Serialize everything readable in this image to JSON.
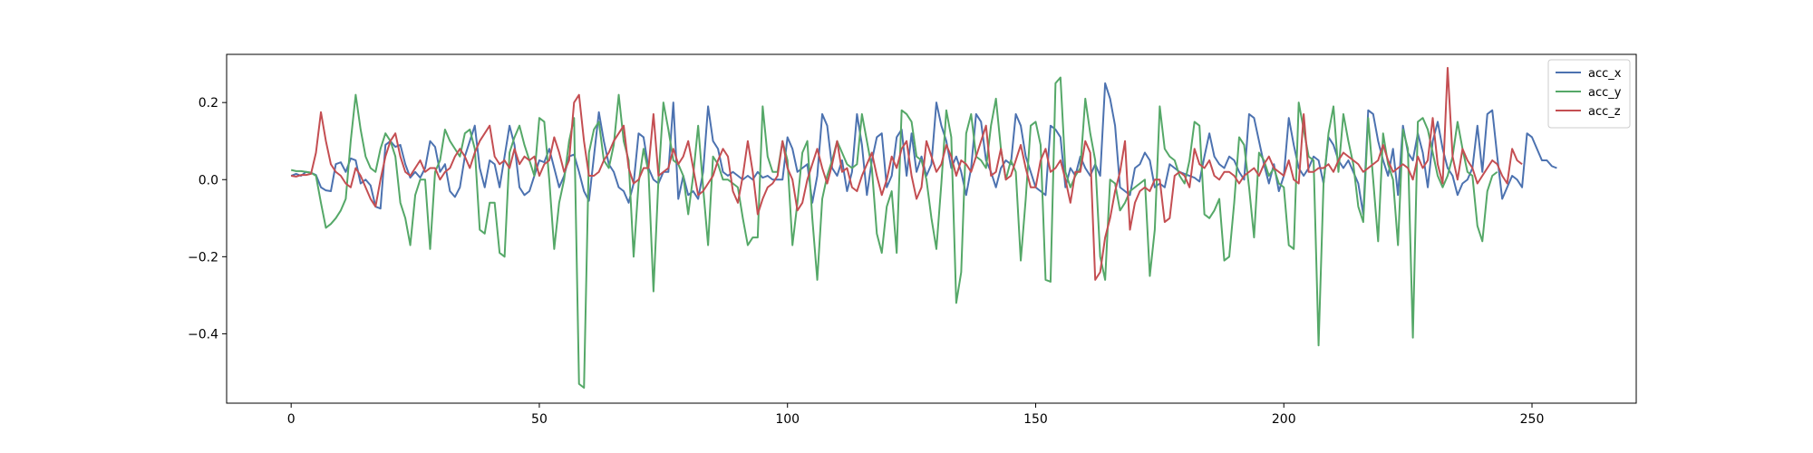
{
  "chart_data": {
    "type": "line",
    "title": "",
    "xlabel": "",
    "ylabel": "",
    "xlim": [
      -13,
      271
    ],
    "ylim": [
      -0.58,
      0.325
    ],
    "xticks": [
      0,
      50,
      100,
      150,
      200,
      250
    ],
    "xtick_labels": [
      "0",
      "50",
      "100",
      "150",
      "200",
      "250"
    ],
    "yticks": [
      0.2,
      0.0,
      -0.2,
      -0.4
    ],
    "ytick_labels": [
      "0.2",
      "0.0",
      "−0.2",
      "−0.4"
    ],
    "grid": false,
    "legend_position": "top-right",
    "x_start": 0,
    "x_step": 1,
    "series": [
      {
        "name": "acc_x",
        "color": "#4c72b0",
        "values": [
          0.01,
          0.015,
          0.01,
          0.02,
          0.018,
          0.012,
          -0.02,
          -0.028,
          -0.03,
          0.04,
          0.045,
          0.02,
          0.055,
          0.05,
          -0.01,
          0.0,
          -0.015,
          -0.07,
          -0.075,
          0.09,
          0.1,
          0.085,
          0.09,
          0.04,
          0.005,
          0.02,
          0.005,
          0.03,
          0.1,
          0.085,
          0.02,
          0.04,
          -0.03,
          -0.045,
          -0.02,
          0.06,
          0.1,
          0.14,
          0.03,
          -0.02,
          0.05,
          0.04,
          -0.02,
          0.06,
          0.14,
          0.09,
          -0.02,
          -0.04,
          -0.03,
          0.01,
          0.05,
          0.045,
          0.08,
          0.03,
          -0.02,
          0.01,
          0.06,
          0.065,
          0.02,
          -0.03,
          -0.055,
          0.06,
          0.175,
          0.1,
          0.04,
          0.02,
          -0.02,
          -0.03,
          -0.06,
          -0.01,
          0.12,
          0.11,
          0.03,
          0.0,
          -0.01,
          0.02,
          0.02,
          0.2,
          -0.05,
          0.01,
          -0.04,
          -0.03,
          -0.05,
          0.02,
          0.19,
          0.1,
          0.08,
          0.02,
          0.01,
          0.02,
          0.01,
          0.0,
          0.01,
          0.0,
          0.02,
          0.005,
          0.01,
          0.0,
          0.0,
          0.0,
          0.11,
          0.08,
          0.02,
          0.03,
          0.04,
          -0.06,
          0.01,
          0.17,
          0.14,
          0.03,
          0.01,
          0.05,
          -0.03,
          0.02,
          0.17,
          0.09,
          -0.04,
          0.05,
          0.11,
          0.12,
          -0.02,
          0.01,
          0.11,
          0.13,
          0.01,
          0.12,
          0.02,
          0.06,
          0.01,
          0.04,
          0.2,
          0.14,
          0.1,
          0.03,
          0.06,
          0.02,
          -0.04,
          0.03,
          0.17,
          0.15,
          0.05,
          0.02,
          -0.02,
          0.03,
          0.05,
          0.04,
          0.17,
          0.14,
          0.06,
          0.02,
          -0.02,
          -0.03,
          -0.04,
          0.14,
          0.13,
          0.11,
          -0.02,
          0.03,
          0.01,
          0.06,
          0.03,
          0.01,
          0.04,
          0.01,
          0.25,
          0.21,
          0.14,
          -0.02,
          -0.03,
          -0.04,
          0.03,
          0.04,
          0.07,
          0.05,
          -0.02,
          -0.01,
          -0.02,
          0.04,
          0.03,
          0.02,
          0.015,
          0.01,
          0.005,
          -0.005,
          0.06,
          0.12,
          0.06,
          0.04,
          0.03,
          0.06,
          0.05,
          0.02,
          0.0,
          0.17,
          0.16,
          0.1,
          0.04,
          -0.01,
          0.04,
          -0.03,
          0.01,
          0.16,
          0.09,
          0.03,
          0.01,
          0.03,
          0.06,
          0.05,
          -0.01,
          0.11,
          0.09,
          0.05,
          0.03,
          0.05,
          0.02,
          -0.01,
          -0.09,
          0.18,
          0.17,
          0.1,
          0.05,
          0.01,
          0.08,
          -0.04,
          0.14,
          0.07,
          0.05,
          0.12,
          0.07,
          -0.02,
          0.1,
          0.15,
          0.08,
          0.03,
          0.01,
          -0.04,
          -0.01,
          0.0,
          0.03,
          0.14,
          0.02,
          0.17,
          0.18,
          0.06,
          -0.05,
          -0.02,
          0.01,
          0.0,
          -0.02,
          0.12,
          0.11,
          0.08,
          0.05,
          0.05,
          0.035,
          0.03
        ]
      },
      {
        "name": "acc_y",
        "color": "#55a868",
        "values": [
          0.025,
          0.022,
          0.022,
          0.02,
          0.018,
          0.01,
          -0.06,
          -0.125,
          -0.115,
          -0.1,
          -0.08,
          -0.05,
          0.1,
          0.22,
          0.13,
          0.06,
          0.03,
          0.02,
          0.08,
          0.12,
          0.1,
          0.06,
          -0.06,
          -0.1,
          -0.17,
          -0.04,
          0.0,
          0.0,
          -0.18,
          0.02,
          0.05,
          0.13,
          0.1,
          0.08,
          0.06,
          0.12,
          0.13,
          0.08,
          -0.13,
          -0.14,
          -0.06,
          -0.06,
          -0.19,
          -0.2,
          0.07,
          0.11,
          0.14,
          0.09,
          0.05,
          0.01,
          0.16,
          0.15,
          0.0,
          -0.18,
          -0.06,
          0.0,
          0.1,
          0.16,
          -0.53,
          -0.54,
          0.07,
          0.13,
          0.15,
          0.05,
          0.03,
          0.09,
          0.22,
          0.1,
          0.05,
          -0.2,
          -0.01,
          0.08,
          0.02,
          -0.29,
          0.0,
          0.2,
          0.13,
          0.05,
          0.04,
          0.01,
          -0.09,
          0.01,
          0.14,
          -0.02,
          -0.17,
          0.06,
          0.04,
          0.0,
          0.0,
          -0.01,
          -0.02,
          -0.1,
          -0.17,
          -0.15,
          -0.15,
          0.19,
          0.06,
          0.02,
          0.02,
          0.1,
          0.05,
          -0.17,
          -0.06,
          0.07,
          0.1,
          -0.1,
          -0.26,
          -0.05,
          0.01,
          0.05,
          0.1,
          0.07,
          0.04,
          0.03,
          0.04,
          0.17,
          0.1,
          0.03,
          -0.14,
          -0.19,
          -0.07,
          -0.03,
          -0.19,
          0.18,
          0.17,
          0.15,
          0.06,
          0.05,
          0.0,
          -0.1,
          -0.18,
          -0.01,
          0.18,
          0.11,
          -0.32,
          -0.24,
          0.12,
          0.17,
          0.06,
          0.05,
          0.03,
          0.14,
          0.21,
          0.08,
          0.0,
          0.05,
          0.02,
          -0.21,
          -0.05,
          0.14,
          0.15,
          0.09,
          -0.26,
          -0.265,
          0.25,
          0.265,
          0.02,
          -0.02,
          0.01,
          0.03,
          0.21,
          0.12,
          0.05,
          -0.2,
          -0.26,
          0.0,
          -0.01,
          -0.08,
          -0.06,
          -0.03,
          -0.02,
          -0.01,
          0.0,
          -0.25,
          -0.13,
          0.19,
          0.08,
          0.06,
          0.05,
          0.01,
          -0.01,
          0.05,
          0.15,
          0.14,
          -0.09,
          -0.1,
          -0.08,
          -0.05,
          -0.21,
          -0.2,
          -0.06,
          0.11,
          0.09,
          -0.02,
          -0.15,
          0.07,
          0.05,
          0.01,
          0.03,
          -0.01,
          -0.02,
          -0.17,
          -0.18,
          0.2,
          0.13,
          0.06,
          0.05,
          -0.43,
          -0.01,
          0.12,
          0.19,
          0.02,
          0.17,
          0.1,
          0.04,
          -0.07,
          -0.11,
          0.16,
          0.0,
          -0.16,
          0.12,
          0.04,
          0.0,
          -0.17,
          0.13,
          0.08,
          -0.41,
          0.15,
          0.16,
          0.13,
          0.07,
          0.01,
          -0.02,
          0.01,
          0.06,
          0.15,
          0.08,
          0.02,
          0.01,
          -0.12,
          -0.16,
          -0.03,
          0.01,
          0.02
        ]
      },
      {
        "name": "acc_z",
        "color": "#c44e52",
        "values": [
          0.01,
          0.008,
          0.012,
          0.012,
          0.015,
          0.07,
          0.175,
          0.1,
          0.04,
          0.02,
          0.01,
          -0.01,
          -0.02,
          0.03,
          0.01,
          -0.02,
          -0.05,
          -0.07,
          0.0,
          0.06,
          0.1,
          0.12,
          0.06,
          0.02,
          0.01,
          0.03,
          0.05,
          0.02,
          0.03,
          0.03,
          0.0,
          0.02,
          0.03,
          0.06,
          0.08,
          0.06,
          0.03,
          0.07,
          0.1,
          0.12,
          0.14,
          0.06,
          0.04,
          0.05,
          0.03,
          0.08,
          0.04,
          0.06,
          0.05,
          0.06,
          0.01,
          0.04,
          0.05,
          0.11,
          0.07,
          0.02,
          0.05,
          0.2,
          0.22,
          0.1,
          0.01,
          0.01,
          0.02,
          0.05,
          0.07,
          0.1,
          0.12,
          0.14,
          0.03,
          -0.01,
          0.0,
          0.03,
          0.03,
          0.17,
          0.01,
          0.02,
          0.03,
          0.08,
          0.04,
          0.06,
          0.1,
          0.03,
          -0.04,
          -0.03,
          -0.01,
          0.01,
          0.05,
          0.08,
          0.06,
          -0.03,
          -0.06,
          0.01,
          0.1,
          0.02,
          -0.09,
          -0.05,
          -0.02,
          -0.01,
          0.01,
          0.1,
          0.03,
          0.0,
          -0.08,
          -0.06,
          0.0,
          0.04,
          0.08,
          0.03,
          -0.01,
          0.04,
          0.1,
          0.02,
          0.03,
          -0.02,
          -0.03,
          0.01,
          0.04,
          0.07,
          0.01,
          -0.04,
          0.0,
          0.06,
          0.03,
          0.08,
          0.1,
          0.01,
          -0.05,
          -0.02,
          0.1,
          0.06,
          0.02,
          0.04,
          0.09,
          0.06,
          0.01,
          0.05,
          0.04,
          0.02,
          0.06,
          0.1,
          0.14,
          0.01,
          0.02,
          0.08,
          0.0,
          0.01,
          0.05,
          0.09,
          0.03,
          -0.02,
          -0.02,
          0.05,
          0.08,
          0.02,
          0.03,
          0.05,
          0.0,
          -0.06,
          0.02,
          0.02,
          0.1,
          0.07,
          -0.26,
          -0.24,
          -0.15,
          -0.1,
          -0.03,
          0.02,
          0.1,
          -0.13,
          -0.06,
          -0.03,
          -0.02,
          -0.03,
          0.0,
          0.0,
          -0.11,
          -0.1,
          0.01,
          0.02,
          0.01,
          -0.02,
          0.08,
          0.04,
          0.03,
          0.05,
          0.01,
          0.0,
          0.02,
          0.02,
          0.01,
          -0.01,
          0.01,
          0.02,
          0.03,
          0.01,
          0.04,
          0.06,
          0.03,
          0.02,
          0.01,
          0.05,
          0.0,
          -0.01,
          0.17,
          0.02,
          0.02,
          0.03,
          0.03,
          0.04,
          0.02,
          0.05,
          0.07,
          0.06,
          0.05,
          0.04,
          0.02,
          0.03,
          0.04,
          0.05,
          0.09,
          0.05,
          0.02,
          0.03,
          0.04,
          0.03,
          0.0,
          0.06,
          0.03,
          0.05,
          0.16,
          0.04,
          -0.01,
          0.29,
          0.06,
          0.0,
          0.08,
          0.05,
          0.03,
          -0.01,
          0.01,
          0.03,
          0.05,
          0.04,
          0.01,
          -0.01,
          0.08,
          0.05,
          0.04
        ]
      }
    ]
  }
}
